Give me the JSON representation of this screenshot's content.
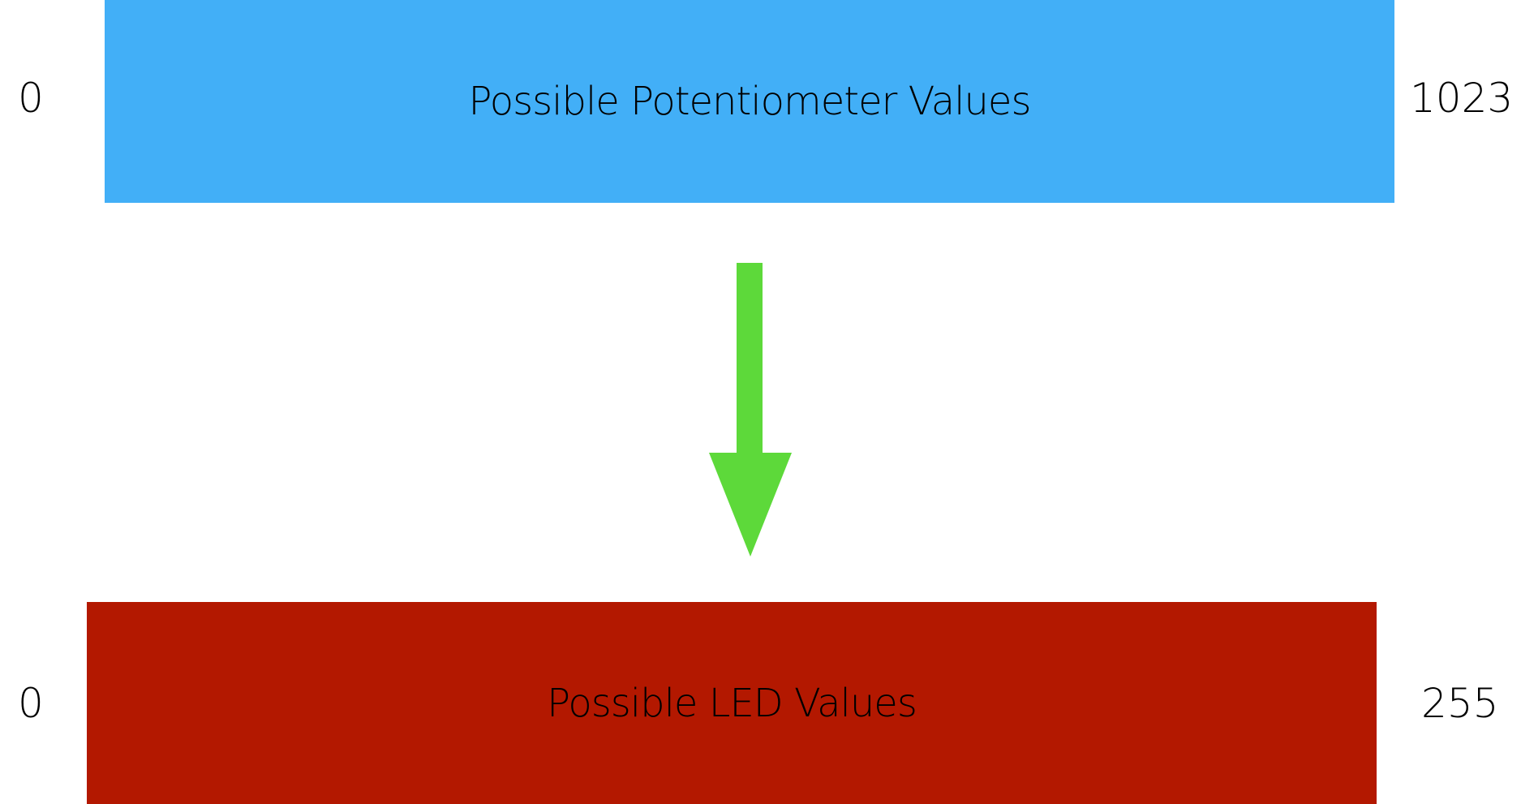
{
  "top_range": {
    "label": "Possible Potentiometer Values",
    "min": "0",
    "max": "1023",
    "color": "#42AFF7"
  },
  "arrow": {
    "direction": "down",
    "color": "#5DD93A"
  },
  "bottom_range": {
    "label": "Possible LED Values",
    "min": "0",
    "max": "255",
    "color": "#B31800"
  }
}
